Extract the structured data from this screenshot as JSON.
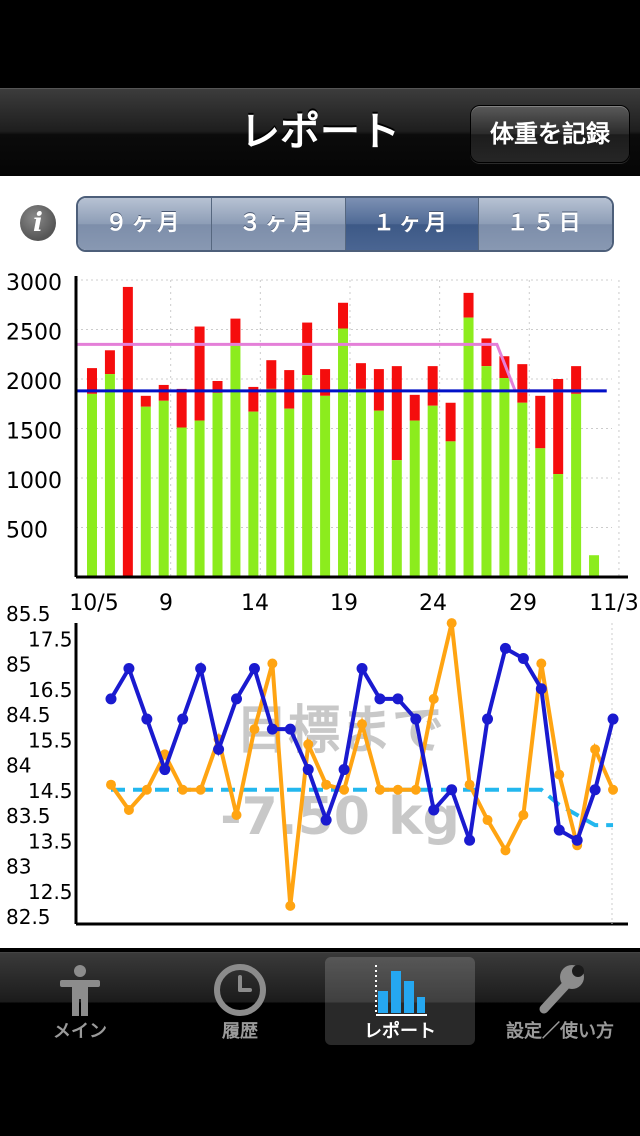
{
  "nav": {
    "title": "レポート",
    "record_button": "体重を記録"
  },
  "range_tabs": [
    {
      "label": "９ヶ月",
      "selected": false
    },
    {
      "label": "３ヶ月",
      "selected": false
    },
    {
      "label": "１ヶ月",
      "selected": true
    },
    {
      "label": "１５日",
      "selected": false
    }
  ],
  "overlay": {
    "line1": "目標まで",
    "line2": "-7.50 kg"
  },
  "tabs": [
    {
      "label": "メイン",
      "icon": "person-icon",
      "selected": false
    },
    {
      "label": "履歴",
      "icon": "clock-icon",
      "selected": false
    },
    {
      "label": "レポート",
      "icon": "bar-chart-icon",
      "selected": true
    },
    {
      "label": "設定／使い方",
      "icon": "wrench-icon",
      "selected": false
    }
  ],
  "colors": {
    "intake": "#8cec1d",
    "excess": "#f50d0d",
    "target_pink": "#e47fd8",
    "target_blue": "#0011c8",
    "weight": "#1a1acf",
    "body_fat": "#ffa412",
    "goal_dash": "#23b7ee"
  },
  "chart_data": [
    {
      "type": "bar",
      "x_tick_labels": [
        "10/5",
        "9",
        "14",
        "19",
        "24",
        "29",
        "11/3"
      ],
      "y_tick_labels": [
        "3000",
        "2500",
        "2000",
        "1500",
        "1000",
        "500"
      ],
      "ylim": [
        0,
        3000
      ],
      "days": 30,
      "green_values": [
        1850,
        2050,
        0,
        1720,
        1780,
        1510,
        1580,
        1860,
        2340,
        1670,
        1900,
        1700,
        2040,
        1830,
        2510,
        1900,
        1680,
        1180,
        1580,
        1730,
        1370,
        2620,
        2130,
        2010,
        1760,
        1300,
        1040,
        1850,
        220
      ],
      "red_top_values": [
        2110,
        2290,
        2930,
        1830,
        1940,
        1900,
        2530,
        1980,
        2610,
        1920,
        2190,
        2090,
        2570,
        2100,
        2770,
        2160,
        2100,
        2130,
        1840,
        2130,
        1760,
        2870,
        2410,
        2230,
        2150,
        1830,
        2000,
        2130,
        220
      ],
      "series": [
        {
          "values": [
            2350,
            2350,
            2350,
            2350,
            2350,
            2350,
            2350,
            2350,
            2350,
            2350,
            2350,
            2350,
            2350,
            2350,
            2350,
            2350,
            2350,
            2350,
            2350,
            2350,
            2350,
            2350,
            2350,
            2350,
            1880,
            1880,
            1880,
            1880,
            1880,
            1880
          ]
        },
        {
          "values": [
            1880,
            1880,
            1880,
            1880,
            1880,
            1880,
            1880,
            1880,
            1880,
            1880,
            1880,
            1880,
            1880,
            1880,
            1880,
            1880,
            1880,
            1880,
            1880,
            1880,
            1880,
            1880,
            1880,
            1880,
            1880,
            1880,
            1880,
            1880,
            1880,
            1880
          ]
        }
      ]
    },
    {
      "type": "line",
      "left_tick_labels": [
        "85.5",
        "85",
        "84.5",
        "84",
        "83.5",
        "83",
        "82.5"
      ],
      "inner_tick_labels": [
        "17.5",
        "16.5",
        "15.5",
        "14.5",
        "13.5",
        "12.5"
      ],
      "ylim_weight": [
        82.5,
        85.5
      ],
      "ylim_body_fat": [
        12,
        18
      ],
      "series": [
        {
          "values": [
            84.65,
            84.95,
            84.45,
            83.95,
            84.45,
            84.95,
            84.15,
            84.65,
            84.95,
            84.35,
            84.35,
            83.95,
            83.45,
            83.95,
            84.95,
            84.65,
            84.65,
            84.45,
            83.55,
            83.75,
            83.25,
            84.45,
            85.15,
            85.05,
            84.75,
            83.35,
            83.25,
            83.75,
            84.45
          ]
        },
        {
          "values": [
            14.6,
            14.1,
            14.5,
            15.2,
            14.5,
            14.5,
            15.5,
            14.0,
            15.7,
            17.0,
            12.2,
            15.4,
            14.6,
            14.5,
            15.8,
            14.5,
            14.5,
            14.5,
            16.3,
            17.8,
            14.6,
            13.9,
            13.3,
            14.0,
            17.0,
            14.8,
            13.4,
            15.3,
            14.5
          ]
        },
        {
          "values": [
            14.5,
            14.5,
            14.5,
            14.5,
            14.5,
            14.5,
            14.5,
            14.5,
            14.5,
            14.5,
            14.5,
            14.5,
            14.5,
            14.5,
            14.5,
            14.5,
            14.5,
            14.5,
            14.5,
            14.5,
            14.5,
            14.5,
            14.5,
            14.5,
            14.5,
            14.2,
            14.0,
            13.8,
            13.8
          ]
        }
      ]
    }
  ]
}
